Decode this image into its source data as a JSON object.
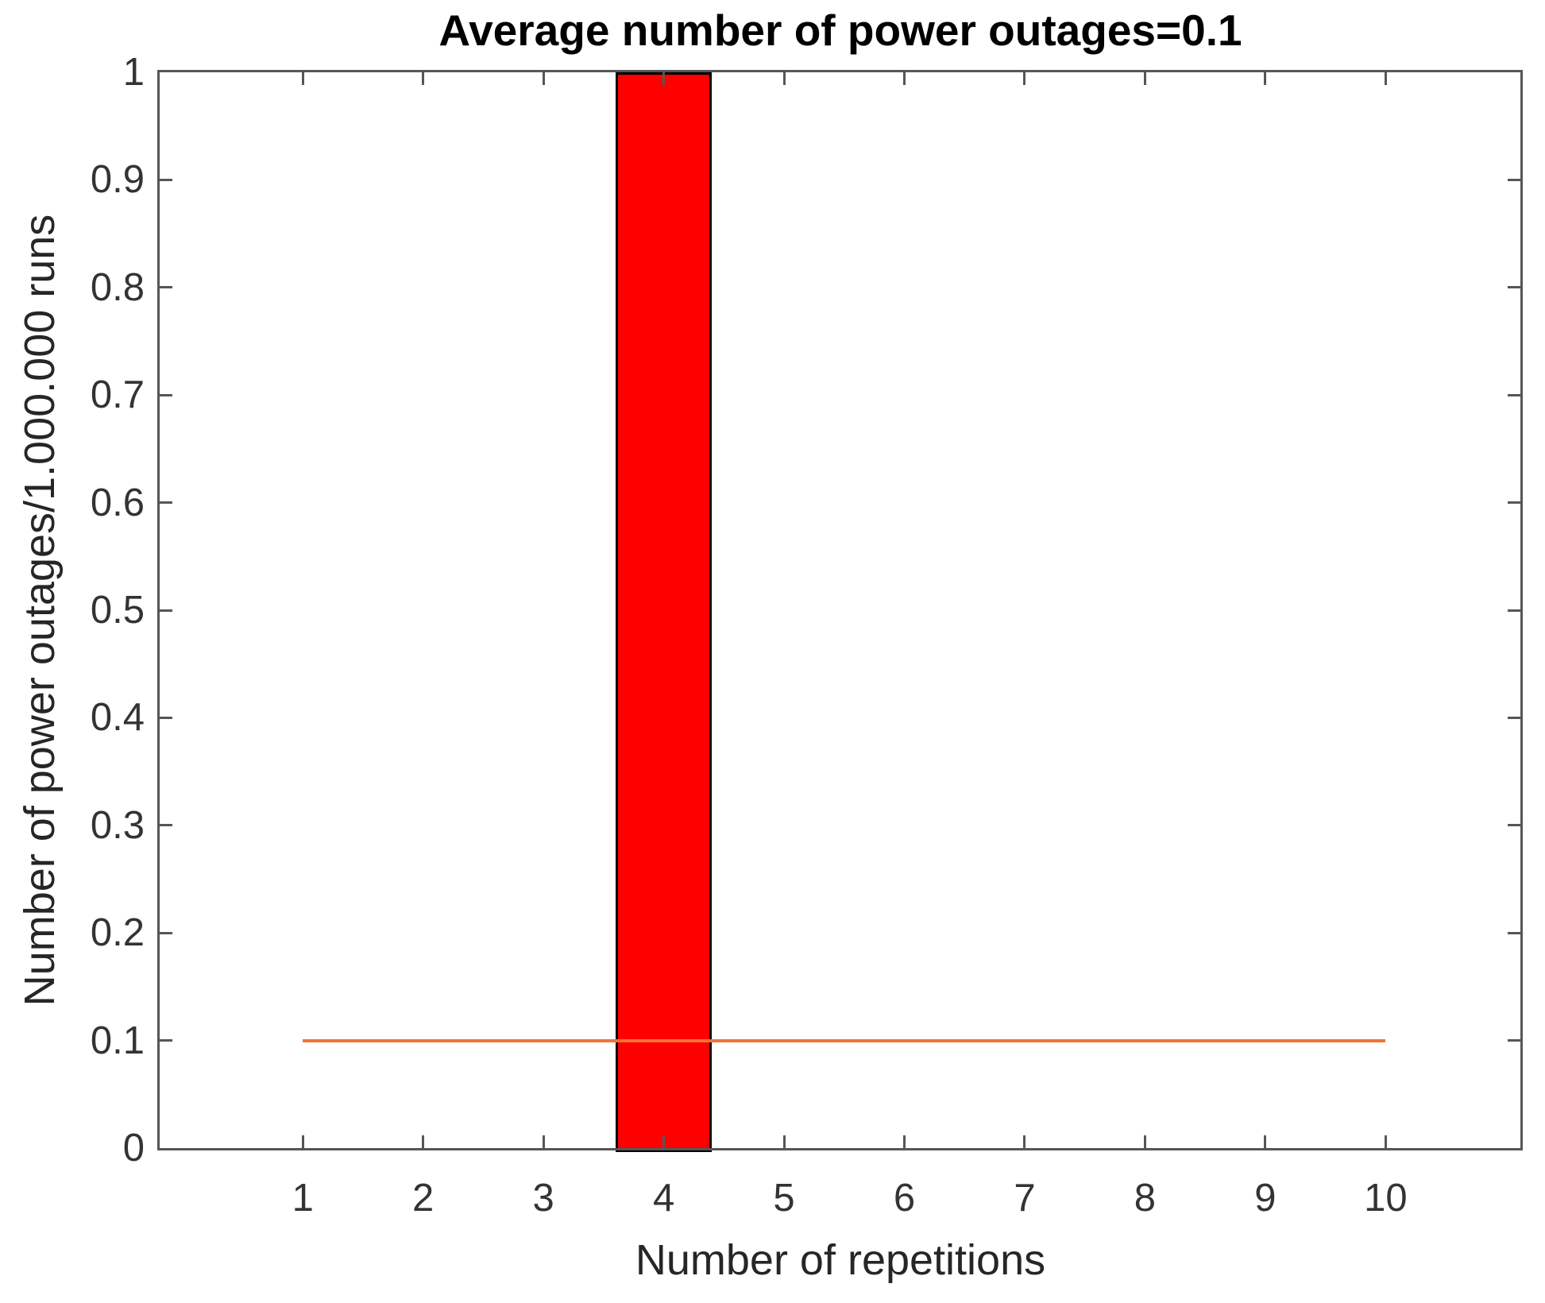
{
  "chart_data": {
    "type": "bar",
    "title": "Average number of power outages=0.1",
    "xlabel": "Number of repetitions",
    "ylabel": "Number of power outages/1.000.000 runs",
    "categories": [
      "1",
      "2",
      "3",
      "4",
      "5",
      "6",
      "7",
      "8",
      "9",
      "10"
    ],
    "values": [
      0,
      0,
      0,
      1,
      0,
      0,
      0,
      0,
      0,
      0
    ],
    "bar": {
      "x": 4,
      "height": 1,
      "width": 0.8,
      "fill_color": "#fe0000",
      "edge_color": "#000000"
    },
    "reference_line": {
      "y": 0.1,
      "x_start": 1,
      "x_end": 10,
      "color": "#f5713a",
      "thickness_px": 4
    },
    "xlim": [
      -0.19,
      11.12
    ],
    "ylim": [
      0,
      1
    ],
    "x_ticks": [
      {
        "v": 1,
        "label": "1"
      },
      {
        "v": 2,
        "label": "2"
      },
      {
        "v": 3,
        "label": "3"
      },
      {
        "v": 4,
        "label": "4"
      },
      {
        "v": 5,
        "label": "5"
      },
      {
        "v": 6,
        "label": "6"
      },
      {
        "v": 7,
        "label": "7"
      },
      {
        "v": 8,
        "label": "8"
      },
      {
        "v": 9,
        "label": "9"
      },
      {
        "v": 10,
        "label": "10"
      }
    ],
    "y_ticks": [
      {
        "v": 0,
        "label": "0"
      },
      {
        "v": 0.1,
        "label": "0.1"
      },
      {
        "v": 0.2,
        "label": "0.2"
      },
      {
        "v": 0.3,
        "label": "0.3"
      },
      {
        "v": 0.4,
        "label": "0.4"
      },
      {
        "v": 0.5,
        "label": "0.5"
      },
      {
        "v": 0.6,
        "label": "0.6"
      },
      {
        "v": 0.7,
        "label": "0.7"
      },
      {
        "v": 0.8,
        "label": "0.8"
      },
      {
        "v": 0.9,
        "label": "0.9"
      },
      {
        "v": 1,
        "label": "1"
      }
    ],
    "grid": false,
    "legend_position": "none",
    "ticks_direction": "in",
    "box": true,
    "axis_color": "#565656",
    "tick_label_color": "#333333",
    "background_color": "#ffffff"
  }
}
